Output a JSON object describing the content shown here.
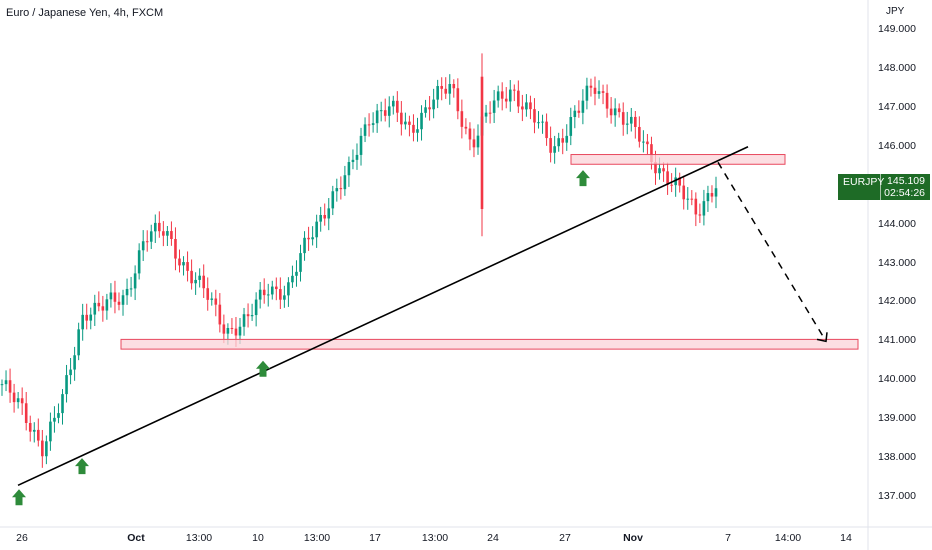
{
  "header": {
    "title": "Euro / Japanese Yen, 4h, FXCM",
    "unit": "JPY"
  },
  "price_badge": {
    "symbol": "EURJPY",
    "price": "145.109",
    "countdown": "02:54:26",
    "color": "#1e6b26"
  },
  "colors": {
    "up": "#089981",
    "down": "#f23645",
    "zone_fill": "#fbd3d8",
    "zone_stroke": "#e8485e",
    "arrow": "#2e8b3a",
    "trendline": "#000000"
  },
  "chart_data": {
    "type": "candlestick",
    "title": "Euro / Japanese Yen, 4h, FXCM",
    "ylabel": "JPY",
    "ylim": [
      136.5,
      149.5
    ],
    "y_ticks": [
      "137.000",
      "138.000",
      "139.000",
      "140.000",
      "141.000",
      "142.000",
      "143.000",
      "144.000",
      "145.000",
      "146.000",
      "147.000",
      "148.000",
      "149.000"
    ],
    "x_ticks": [
      "26",
      "Oct",
      "13:00",
      "10",
      "13:00",
      "17",
      "13:00",
      "24",
      "27",
      "Nov",
      "7",
      "14:00",
      "14"
    ],
    "x_ticks_bold": [
      "Oct",
      "Nov"
    ],
    "anchors": [
      {
        "label": "26",
        "price": 139.9
      },
      {
        "label": "",
        "price": 139.2
      },
      {
        "label": "",
        "price": 138.3
      },
      {
        "label": "",
        "price": 139.5
      },
      {
        "label": "",
        "price": 141.8
      },
      {
        "label": "Oct",
        "price": 141.9
      },
      {
        "label": "",
        "price": 142.1
      },
      {
        "label": "",
        "price": 143.7
      },
      {
        "label": "13:00",
        "price": 143.8
      },
      {
        "label": "",
        "price": 142.9
      },
      {
        "label": "",
        "price": 142.2
      },
      {
        "label": "10",
        "price": 141.3
      },
      {
        "label": "",
        "price": 141.5
      },
      {
        "label": "",
        "price": 142.4
      },
      {
        "label": "13:00",
        "price": 142.3
      },
      {
        "label": "",
        "price": 143.6
      },
      {
        "label": "",
        "price": 144.6
      },
      {
        "label": "17",
        "price": 145.3
      },
      {
        "label": "",
        "price": 146.8
      },
      {
        "label": "",
        "price": 147.0
      },
      {
        "label": "13:00",
        "price": 146.4
      },
      {
        "label": "",
        "price": 147.2
      },
      {
        "label": "",
        "price": 147.5
      },
      {
        "label": "24",
        "price": 146.1
      },
      {
        "label": "",
        "price": 147.0
      },
      {
        "label": "",
        "price": 147.5
      },
      {
        "label": "27",
        "price": 146.8
      },
      {
        "label": "",
        "price": 145.9
      },
      {
        "label": "",
        "price": 146.8
      },
      {
        "label": "",
        "price": 147.5
      },
      {
        "label": "Nov",
        "price": 147.0
      },
      {
        "label": "",
        "price": 146.4
      },
      {
        "label": "",
        "price": 145.6
      },
      {
        "label": "",
        "price": 145.0
      },
      {
        "label": "",
        "price": 144.3
      },
      {
        "label": "7",
        "price": 145.1
      }
    ],
    "spikes": [
      {
        "label": "24",
        "high": 148.4,
        "low": 143.7
      }
    ],
    "last_price": 145.109,
    "annotations": {
      "zones": [
        {
          "price_low": 140.8,
          "price_high": 141.05,
          "from": "Oct",
          "to": "14"
        },
        {
          "price_low": 145.55,
          "price_high": 145.8,
          "from": "27",
          "to": "14:00"
        }
      ],
      "trendline": {
        "from": {
          "label": "26",
          "price": 137.3
        },
        "to": {
          "label": "14:00",
          "price": 146.0
        }
      },
      "projection": {
        "from": {
          "label": "7",
          "price": 145.6
        },
        "to": {
          "label": "14",
          "price": 141.0
        }
      },
      "up_arrows": [
        {
          "label": "26",
          "price": 137.2
        },
        {
          "label": "",
          "price": 138.0
        },
        {
          "label": "10",
          "price": 140.5
        },
        {
          "label": "27",
          "price": 145.4
        }
      ]
    }
  }
}
